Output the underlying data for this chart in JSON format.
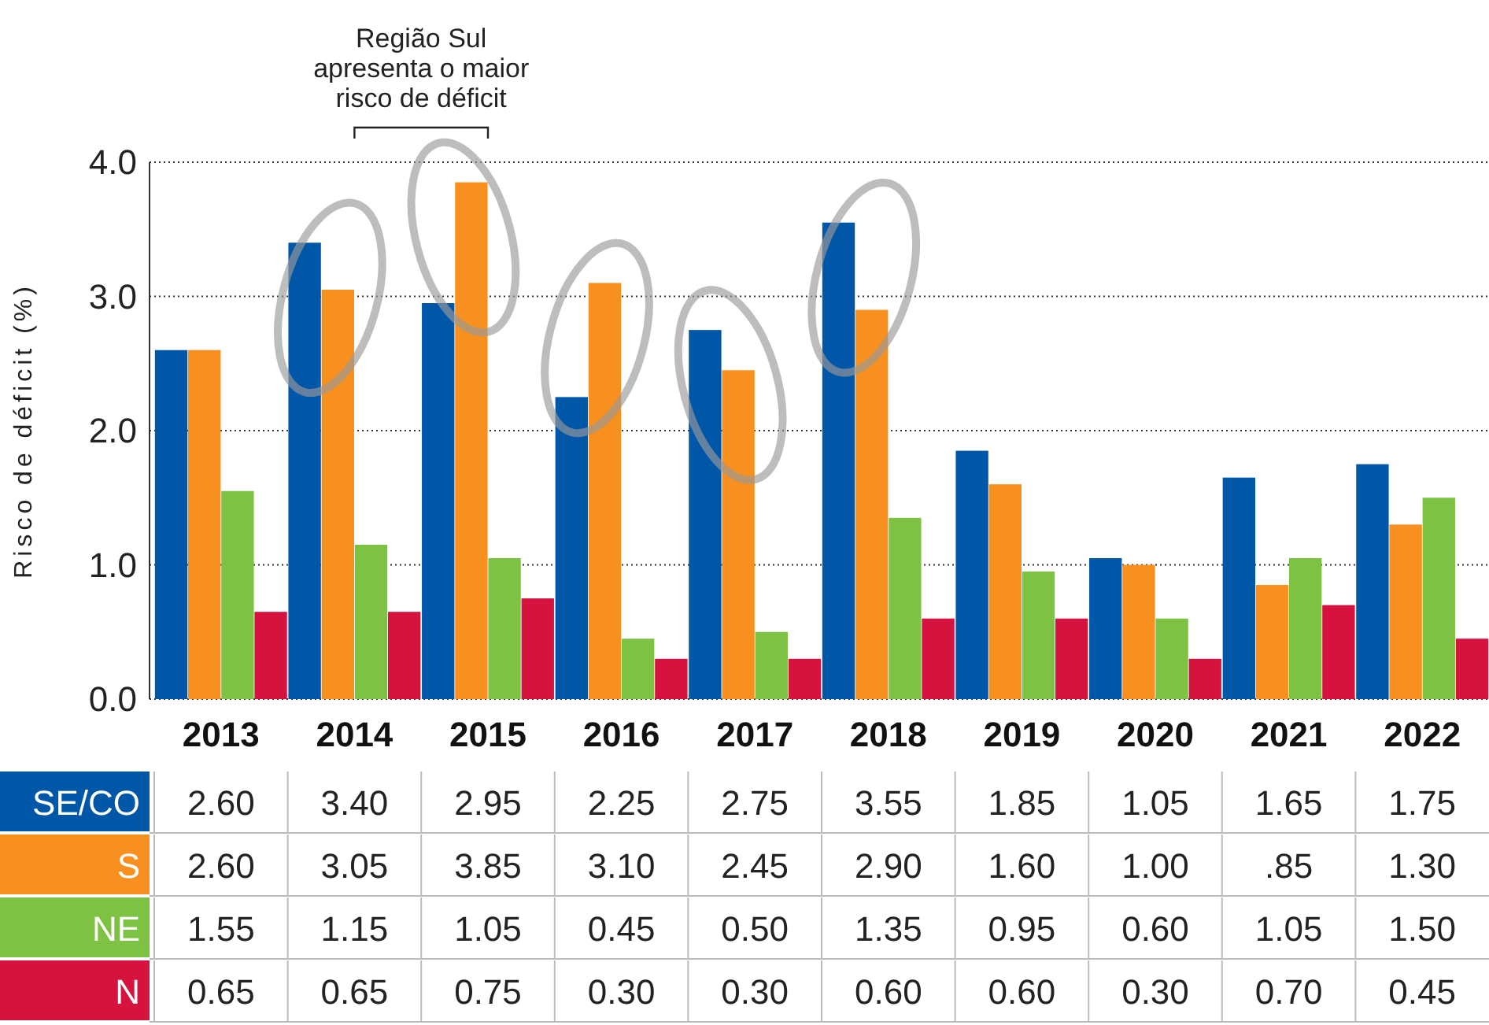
{
  "chart_data": {
    "type": "bar",
    "ylabel": "Risco de déficit (%)",
    "categories": [
      "2013",
      "2014",
      "2015",
      "2016",
      "2017",
      "2018",
      "2019",
      "2020",
      "2021",
      "2022"
    ],
    "series": [
      {
        "name": "SE/CO",
        "color": "#0057a8",
        "values": [
          2.6,
          3.4,
          2.95,
          2.25,
          2.75,
          3.55,
          1.85,
          1.05,
          1.65,
          1.75
        ],
        "value_labels": [
          "2.60",
          "3.40",
          "2.95",
          "2.25",
          "2.75",
          "3.55",
          "1.85",
          "1.05",
          "1.65",
          "1.75"
        ]
      },
      {
        "name": "S",
        "color": "#f7901e",
        "values": [
          2.6,
          3.05,
          3.85,
          3.1,
          2.45,
          2.9,
          1.6,
          1.0,
          0.85,
          1.3
        ],
        "value_labels": [
          "2.60",
          "3.05",
          "3.85",
          "3.10",
          "2.45",
          "2.90",
          "1.60",
          "1.00",
          ".85",
          "1.30"
        ]
      },
      {
        "name": "NE",
        "color": "#7dc242",
        "values": [
          1.55,
          1.15,
          1.05,
          0.45,
          0.5,
          1.35,
          0.95,
          0.6,
          1.05,
          1.5
        ],
        "value_labels": [
          "1.55",
          "1.15",
          "1.05",
          "0.45",
          "0.50",
          "1.35",
          "0.95",
          "0.60",
          "1.05",
          "1.50"
        ]
      },
      {
        "name": "N",
        "color": "#d6123f",
        "values": [
          0.65,
          0.65,
          0.75,
          0.3,
          0.3,
          0.6,
          0.6,
          0.3,
          0.7,
          0.45
        ],
        "value_labels": [
          "0.65",
          "0.65",
          "0.75",
          "0.30",
          "0.30",
          "0.60",
          "0.60",
          "0.30",
          "0.70",
          "0.45"
        ]
      }
    ],
    "ylim": [
      0,
      4
    ],
    "yticks": [
      {
        "value": 0,
        "label": "0.0"
      },
      {
        "value": 1,
        "label": "1.0"
      },
      {
        "value": 2,
        "label": "2.0"
      },
      {
        "value": 3,
        "label": "3.0"
      },
      {
        "value": 4,
        "label": "4.0"
      }
    ],
    "grid": "y",
    "annotations": [
      "Região Sul apresenta o maior risco de déficit"
    ]
  }
}
